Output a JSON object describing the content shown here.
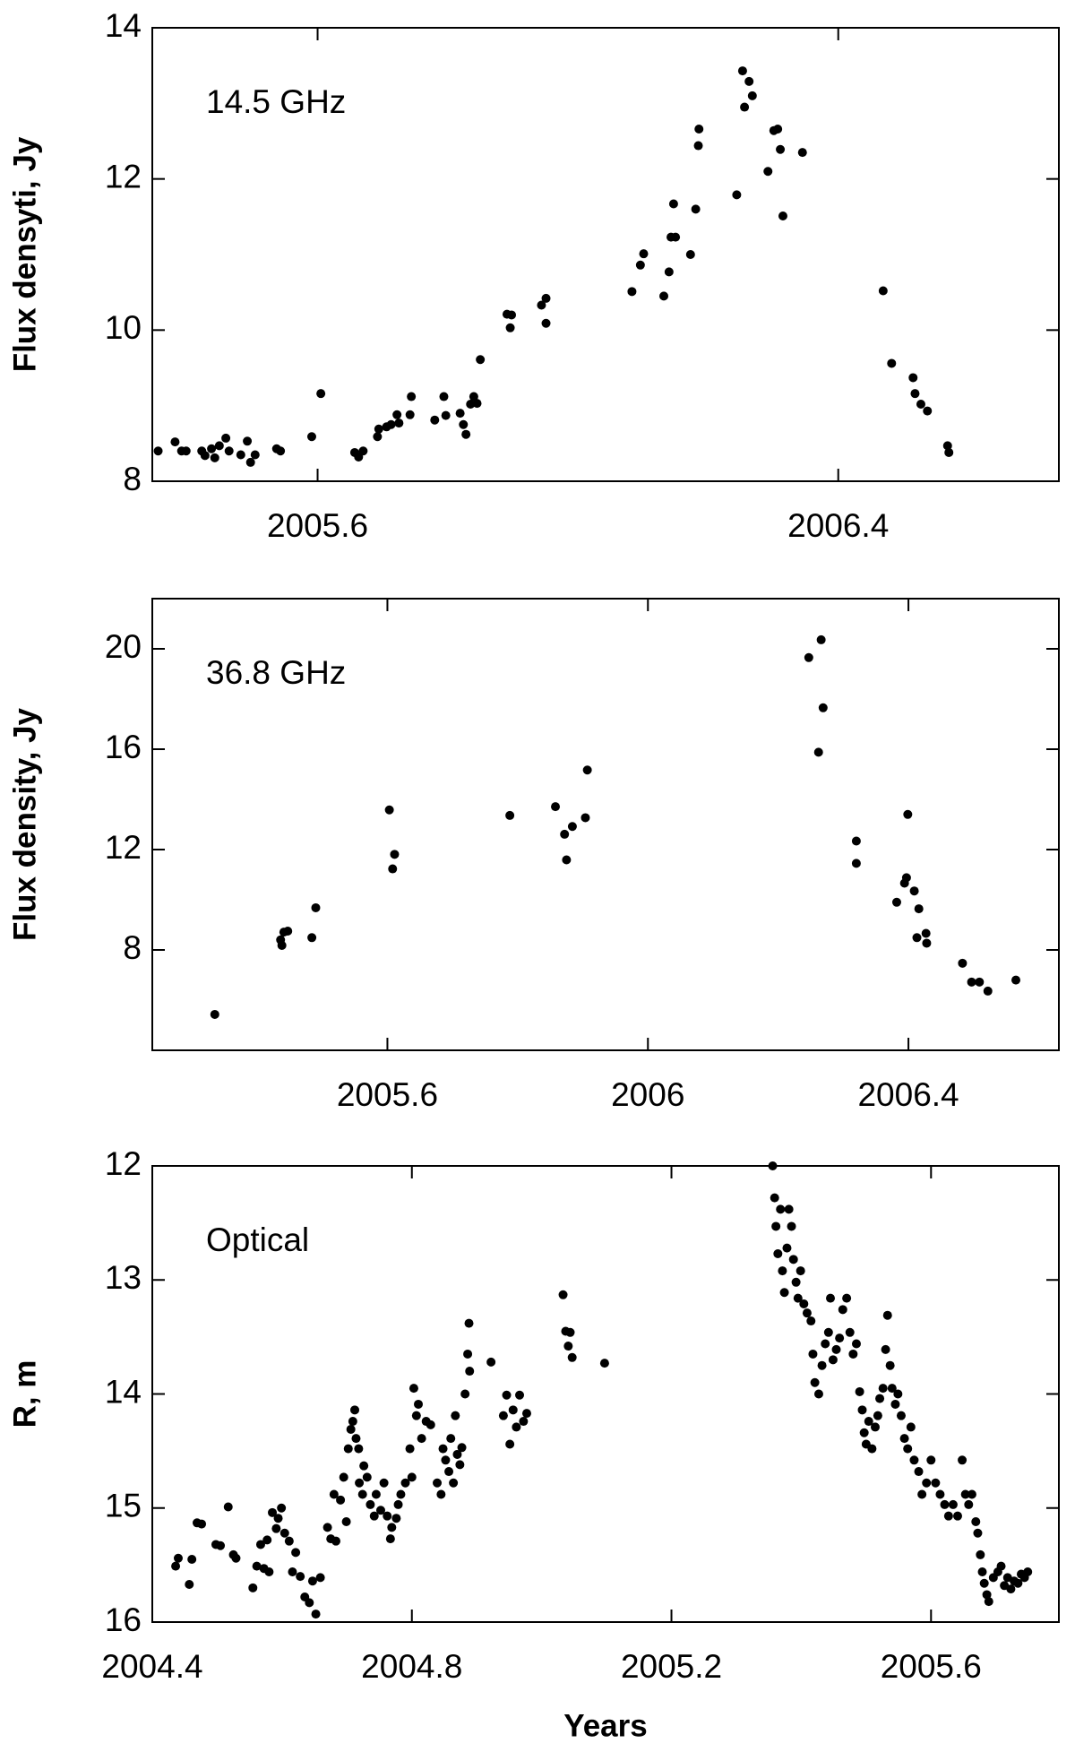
{
  "chart_data": [
    {
      "type": "scatter",
      "annotation": "14.5 GHz",
      "ylabel": "Flux densyti, Jy",
      "color": "#000000",
      "xlim": [
        2005.346,
        2006.739
      ],
      "xticks": [
        2005.6,
        2006.4
      ],
      "ylim": [
        8,
        14
      ],
      "yticks": [
        8,
        10,
        12,
        14
      ],
      "x": [
        2005.355,
        2005.381,
        2005.391,
        2005.398,
        2005.422,
        2005.427,
        2005.437,
        2005.442,
        2005.449,
        2005.459,
        2005.464,
        2005.482,
        2005.492,
        2005.497,
        2005.504,
        2005.537,
        2005.543,
        2005.591,
        2005.605,
        2005.657,
        2005.663,
        2005.67,
        2005.692,
        2005.694,
        2005.706,
        2005.713,
        2005.722,
        2005.725,
        2005.744,
        2005.742,
        2005.78,
        2005.794,
        2005.797,
        2005.819,
        2005.824,
        2005.828,
        2005.835,
        2005.84,
        2005.845,
        2005.85,
        2005.891,
        2005.896,
        2005.898,
        2005.944,
        2005.951,
        2005.951,
        2006.083,
        2006.096,
        2006.101,
        2006.132,
        2006.14,
        2006.143,
        2006.15,
        2006.147,
        2006.173,
        2006.181,
        2006.185,
        2006.186,
        2006.244,
        2006.253,
        2006.256,
        2006.263,
        2006.268,
        2006.292,
        2006.301,
        2006.307,
        2006.311,
        2006.315,
        2006.345,
        2006.469,
        2006.482,
        2006.515,
        2006.518,
        2006.527,
        2006.537,
        2006.568,
        2006.57
      ],
      "values": [
        8.4,
        8.52,
        8.4,
        8.4,
        8.4,
        8.34,
        8.43,
        8.31,
        8.47,
        8.57,
        8.4,
        8.35,
        8.53,
        8.25,
        8.35,
        8.43,
        8.4,
        8.59,
        9.16,
        8.38,
        8.32,
        8.4,
        8.59,
        8.69,
        8.72,
        8.75,
        8.88,
        8.77,
        9.12,
        8.88,
        8.81,
        9.12,
        8.87,
        8.9,
        8.75,
        8.62,
        9.02,
        9.12,
        9.03,
        9.61,
        10.21,
        10.03,
        10.2,
        10.33,
        10.42,
        10.09,
        10.51,
        10.86,
        11.01,
        10.45,
        10.77,
        11.23,
        11.23,
        11.67,
        11.0,
        11.6,
        12.44,
        12.66,
        11.79,
        13.43,
        12.95,
        13.29,
        13.1,
        12.1,
        12.64,
        12.66,
        12.39,
        11.51,
        12.35,
        10.52,
        9.56,
        9.37,
        9.16,
        9.02,
        8.93,
        8.47,
        8.38
      ]
    },
    {
      "type": "scatter",
      "annotation": "36.8 GHz",
      "ylabel": "Flux density, Jy",
      "color": "#000000",
      "xlim": [
        2005.239,
        2006.631
      ],
      "xticks": [
        2005.6,
        2006,
        2006.4
      ],
      "ylim": [
        4,
        22
      ],
      "yticks": [
        8,
        12,
        16,
        20
      ],
      "x": [
        2005.335,
        2005.436,
        2005.438,
        2005.441,
        2005.447,
        2005.484,
        2005.49,
        2005.603,
        2005.608,
        2005.611,
        2005.788,
        2005.858,
        2005.872,
        2005.875,
        2005.884,
        2005.904,
        2005.907,
        2006.247,
        2006.266,
        2006.262,
        2006.269,
        2006.32,
        2006.32,
        2006.382,
        2006.394,
        2006.397,
        2006.399,
        2006.409,
        2006.416,
        2006.413,
        2006.427,
        2006.428,
        2006.483,
        2006.497,
        2006.509,
        2006.522,
        2006.565
      ],
      "values": [
        5.43,
        8.4,
        8.18,
        8.71,
        8.75,
        8.49,
        9.68,
        13.58,
        11.23,
        11.81,
        13.36,
        13.71,
        12.61,
        11.59,
        12.92,
        13.27,
        15.17,
        19.65,
        20.36,
        15.88,
        17.65,
        12.34,
        11.45,
        9.9,
        10.66,
        10.88,
        13.4,
        10.35,
        9.64,
        8.49,
        8.66,
        8.27,
        7.47,
        6.72,
        6.72,
        6.36,
        6.8
      ]
    },
    {
      "type": "scatter",
      "annotation": "Optical",
      "ylabel": "R, m",
      "xlabel": "Years",
      "color": "#000000",
      "xlim": [
        2004.4,
        2005.797
      ],
      "xticks": [
        2004.4,
        2004.8,
        2005.2,
        2005.6
      ],
      "ylim": [
        16,
        12
      ],
      "yticks": [
        12,
        13,
        14,
        15,
        16
      ],
      "x": [
        2004.436,
        2004.44,
        2004.457,
        2004.461,
        2004.469,
        2004.476,
        2004.498,
        2004.505,
        2004.517,
        2004.525,
        2004.529,
        2004.555,
        2004.561,
        2004.567,
        2004.572,
        2004.577,
        2004.58,
        2004.585,
        2004.591,
        2004.594,
        2004.599,
        2004.604,
        2004.611,
        2004.616,
        2004.621,
        2004.628,
        2004.635,
        2004.642,
        2004.647,
        2004.652,
        2004.659,
        2004.67,
        2004.675,
        2004.68,
        2004.683,
        2004.69,
        2004.695,
        2004.699,
        2004.702,
        2004.706,
        2004.709,
        2004.712,
        2004.714,
        2004.718,
        2004.719,
        2004.724,
        2004.726,
        2004.731,
        2004.736,
        2004.742,
        2004.745,
        2004.752,
        2004.757,
        2004.762,
        2004.767,
        2004.769,
        2004.776,
        2004.779,
        2004.783,
        2004.79,
        2004.797,
        2004.8,
        2004.803,
        2004.807,
        2004.81,
        2004.815,
        2004.822,
        2004.829,
        2004.839,
        2004.845,
        2004.848,
        2004.852,
        2004.857,
        2004.86,
        2004.864,
        2004.867,
        2004.87,
        2004.874,
        2004.877,
        2004.882,
        2004.886,
        2004.888,
        2004.889,
        2004.922,
        2004.941,
        2004.946,
        2004.951,
        2004.956,
        2004.961,
        2004.966,
        2004.972,
        2004.977,
        2005.033,
        2005.037,
        2005.041,
        2005.044,
        2005.047,
        2005.097,
        2005.356,
        2005.359,
        2005.361,
        2005.364,
        2005.368,
        2005.371,
        2005.374,
        2005.378,
        2005.381,
        2005.385,
        2005.388,
        2005.392,
        2005.395,
        2005.399,
        2005.404,
        2005.409,
        2005.415,
        2005.418,
        2005.421,
        2005.427,
        2005.432,
        2005.437,
        2005.442,
        2005.445,
        2005.449,
        2005.454,
        2005.459,
        2005.464,
        2005.47,
        2005.475,
        2005.48,
        2005.485,
        2005.49,
        2005.494,
        2005.497,
        2005.5,
        2005.504,
        2005.509,
        2005.514,
        2005.518,
        2005.521,
        2005.526,
        2005.53,
        2005.533,
        2005.537,
        2005.54,
        2005.545,
        2005.549,
        2005.554,
        2005.559,
        2005.564,
        2005.569,
        2005.574,
        2005.581,
        2005.586,
        2005.593,
        2005.6,
        2005.607,
        2005.614,
        2005.621,
        2005.627,
        2005.634,
        2005.641,
        2005.648,
        2005.653,
        2005.658,
        2005.663,
        2005.669,
        2005.672,
        2005.676,
        2005.679,
        2005.682,
        2005.686,
        2005.689,
        2005.696,
        2005.703,
        2005.708,
        2005.713,
        2005.718,
        2005.723,
        2005.728,
        2005.734,
        2005.739,
        2005.744,
        2005.749
      ],
      "values": [
        15.51,
        15.44,
        15.67,
        15.45,
        15.13,
        15.14,
        15.32,
        15.33,
        14.99,
        15.41,
        15.44,
        15.7,
        15.51,
        15.32,
        15.53,
        15.28,
        15.56,
        15.04,
        15.18,
        15.09,
        15.0,
        15.22,
        15.29,
        15.56,
        15.39,
        15.6,
        15.78,
        15.83,
        15.64,
        15.93,
        15.61,
        15.17,
        15.27,
        14.88,
        15.29,
        14.93,
        14.73,
        15.12,
        14.48,
        14.31,
        14.24,
        14.14,
        14.39,
        14.48,
        14.78,
        14.88,
        14.63,
        14.73,
        14.97,
        15.07,
        14.88,
        15.02,
        14.78,
        15.07,
        15.27,
        15.17,
        15.09,
        14.97,
        14.88,
        14.78,
        14.48,
        14.73,
        13.95,
        14.19,
        14.09,
        14.39,
        14.24,
        14.27,
        14.78,
        14.88,
        14.48,
        14.58,
        14.68,
        14.39,
        14.78,
        14.19,
        14.53,
        14.62,
        14.47,
        14.0,
        13.65,
        13.38,
        13.8,
        13.72,
        14.19,
        14.01,
        14.44,
        14.14,
        14.29,
        14.01,
        14.24,
        14.17,
        13.13,
        13.45,
        13.58,
        13.46,
        13.68,
        13.73,
        12.0,
        12.28,
        12.53,
        12.77,
        12.38,
        12.92,
        13.11,
        12.72,
        12.38,
        12.53,
        12.82,
        13.02,
        13.16,
        12.92,
        13.21,
        13.29,
        13.36,
        13.65,
        13.9,
        14.0,
        13.75,
        13.56,
        13.46,
        13.16,
        13.7,
        13.61,
        13.51,
        13.26,
        13.16,
        13.46,
        13.65,
        13.56,
        13.98,
        14.14,
        14.34,
        14.44,
        14.24,
        14.48,
        14.29,
        14.19,
        14.04,
        13.95,
        13.61,
        13.31,
        13.75,
        13.95,
        14.09,
        14.0,
        14.19,
        14.39,
        14.48,
        14.29,
        14.58,
        14.68,
        14.88,
        14.78,
        14.58,
        14.78,
        14.88,
        14.97,
        15.07,
        14.97,
        15.07,
        14.58,
        14.88,
        14.97,
        14.88,
        15.12,
        15.22,
        15.41,
        15.56,
        15.66,
        15.76,
        15.82,
        15.61,
        15.56,
        15.51,
        15.68,
        15.61,
        15.71,
        15.64,
        15.66,
        15.58,
        15.61,
        15.56
      ]
    }
  ]
}
